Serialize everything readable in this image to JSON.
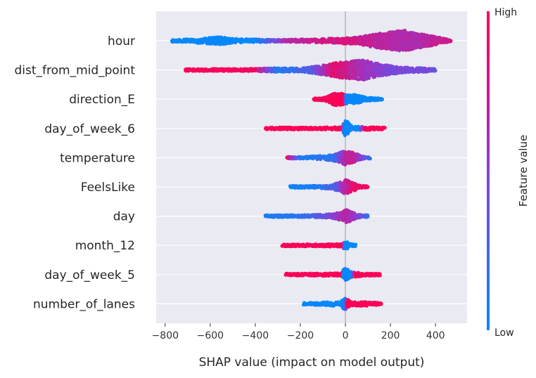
{
  "chart_data": {
    "type": "scatter",
    "subtype": "shap-beeswarm",
    "xlabel": "SHAP value (impact on model output)",
    "xlim": [
      -840,
      540
    ],
    "xticks": [
      -800,
      -600,
      -400,
      -200,
      0,
      200,
      400
    ],
    "colorbar": {
      "label": "Feature value",
      "high_label": "High",
      "low_label": "Low",
      "low_color": "#008bfb",
      "high_color": "#ff0052"
    },
    "background_color": "#eaeaf2",
    "grid": true,
    "features": [
      {
        "name": "hour",
        "min": -770,
        "max": 470,
        "density": [
          [
            -770,
            0.05
          ],
          [
            -700,
            0.12
          ],
          [
            -620,
            0.2
          ],
          [
            -560,
            0.28
          ],
          [
            -480,
            0.14
          ],
          [
            -300,
            0.08
          ],
          [
            -150,
            0.12
          ],
          [
            -50,
            0.18
          ],
          [
            50,
            0.25
          ],
          [
            150,
            0.55
          ],
          [
            220,
            0.7
          ],
          [
            260,
            0.78
          ],
          [
            320,
            0.55
          ],
          [
            400,
            0.3
          ],
          [
            470,
            0.05
          ]
        ],
        "colors": [
          [
            -770,
            0.0
          ],
          [
            -400,
            0.0
          ],
          [
            -250,
            0.7
          ],
          [
            0,
            0.85
          ],
          [
            150,
            0.7
          ],
          [
            300,
            0.65
          ],
          [
            470,
            0.8
          ]
        ]
      },
      {
        "name": "dist_from_mid_point",
        "min": -710,
        "max": 400,
        "density": [
          [
            -710,
            0.04
          ],
          [
            -600,
            0.06
          ],
          [
            -400,
            0.1
          ],
          [
            -300,
            0.15
          ],
          [
            -200,
            0.12
          ],
          [
            -100,
            0.35
          ],
          [
            -20,
            0.6
          ],
          [
            0,
            0.62
          ],
          [
            80,
            0.75
          ],
          [
            150,
            0.45
          ],
          [
            250,
            0.2
          ],
          [
            350,
            0.15
          ],
          [
            400,
            0.05
          ]
        ],
        "colors": [
          [
            -710,
            1.0
          ],
          [
            -400,
            0.95
          ],
          [
            -300,
            0.1
          ],
          [
            -150,
            0.3
          ],
          [
            -50,
            0.9
          ],
          [
            80,
            0.6
          ],
          [
            200,
            0.45
          ],
          [
            400,
            0.4
          ]
        ]
      },
      {
        "name": "direction_E",
        "min": -140,
        "max": 165,
        "density": [
          [
            -140,
            0.04
          ],
          [
            -90,
            0.12
          ],
          [
            -50,
            0.45
          ],
          [
            -30,
            0.5
          ],
          [
            -5,
            0.35
          ],
          [
            15,
            0.3
          ],
          [
            40,
            0.35
          ],
          [
            90,
            0.15
          ],
          [
            165,
            0.04
          ]
        ],
        "colors": [
          [
            -140,
            1.0
          ],
          [
            -5,
            1.0
          ],
          [
            5,
            0.0
          ],
          [
            165,
            0.0
          ]
        ]
      },
      {
        "name": "day_of_week_6",
        "min": -355,
        "max": 175,
        "density": [
          [
            -355,
            0.03
          ],
          [
            -200,
            0.07
          ],
          [
            -20,
            0.1
          ],
          [
            0,
            0.55
          ],
          [
            10,
            0.5
          ],
          [
            30,
            0.15
          ],
          [
            100,
            0.12
          ],
          [
            175,
            0.05
          ]
        ],
        "colors": [
          [
            -355,
            1.0
          ],
          [
            -15,
            1.0
          ],
          [
            -5,
            0.0
          ],
          [
            60,
            0.0
          ],
          [
            90,
            1.0
          ],
          [
            175,
            1.0
          ]
        ]
      },
      {
        "name": "temperature",
        "min": -260,
        "max": 110,
        "density": [
          [
            -260,
            0.04
          ],
          [
            -150,
            0.1
          ],
          [
            -60,
            0.2
          ],
          [
            -20,
            0.4
          ],
          [
            0,
            0.55
          ],
          [
            30,
            0.4
          ],
          [
            70,
            0.15
          ],
          [
            110,
            0.04
          ]
        ],
        "colors": [
          [
            -260,
            0.95
          ],
          [
            -200,
            0.1
          ],
          [
            -50,
            0.15
          ],
          [
            0,
            0.7
          ],
          [
            40,
            0.75
          ],
          [
            110,
            0.2
          ]
        ]
      },
      {
        "name": "FeelsLike",
        "min": -245,
        "max": 100,
        "density": [
          [
            -245,
            0.03
          ],
          [
            -150,
            0.08
          ],
          [
            -60,
            0.15
          ],
          [
            -15,
            0.4
          ],
          [
            0,
            0.55
          ],
          [
            25,
            0.35
          ],
          [
            60,
            0.15
          ],
          [
            100,
            0.04
          ]
        ],
        "colors": [
          [
            -245,
            0.05
          ],
          [
            -120,
            0.1
          ],
          [
            -40,
            0.3
          ],
          [
            0,
            0.7
          ],
          [
            40,
            0.9
          ],
          [
            100,
            0.95
          ]
        ]
      },
      {
        "name": "day",
        "min": -355,
        "max": 100,
        "density": [
          [
            -355,
            0.03
          ],
          [
            -200,
            0.08
          ],
          [
            -60,
            0.15
          ],
          [
            -10,
            0.35
          ],
          [
            5,
            0.5
          ],
          [
            30,
            0.3
          ],
          [
            60,
            0.12
          ],
          [
            100,
            0.04
          ]
        ],
        "colors": [
          [
            -355,
            0.1
          ],
          [
            -200,
            0.15
          ],
          [
            -80,
            0.4
          ],
          [
            0,
            0.7
          ],
          [
            40,
            0.6
          ],
          [
            100,
            0.2
          ]
        ]
      },
      {
        "name": "month_12",
        "min": -280,
        "max": 45,
        "density": [
          [
            -280,
            0.03
          ],
          [
            -150,
            0.08
          ],
          [
            -15,
            0.1
          ],
          [
            -3,
            0.3
          ],
          [
            3,
            0.3
          ],
          [
            20,
            0.12
          ],
          [
            45,
            0.04
          ]
        ],
        "colors": [
          [
            -280,
            1.0
          ],
          [
            -8,
            1.0
          ],
          [
            -4,
            0.0
          ],
          [
            45,
            0.0
          ]
        ]
      },
      {
        "name": "day_of_week_5",
        "min": -265,
        "max": 155,
        "density": [
          [
            -265,
            0.03
          ],
          [
            -120,
            0.1
          ],
          [
            -20,
            0.12
          ],
          [
            -5,
            0.45
          ],
          [
            5,
            0.45
          ],
          [
            25,
            0.2
          ],
          [
            80,
            0.12
          ],
          [
            155,
            0.05
          ]
        ],
        "colors": [
          [
            -265,
            1.0
          ],
          [
            -15,
            1.0
          ],
          [
            -8,
            0.0
          ],
          [
            30,
            0.0
          ],
          [
            45,
            1.0
          ],
          [
            155,
            1.0
          ]
        ]
      },
      {
        "name": "number_of_lanes",
        "min": -185,
        "max": 160,
        "density": [
          [
            -185,
            0.04
          ],
          [
            -120,
            0.1
          ],
          [
            -20,
            0.18
          ],
          [
            -5,
            0.45
          ],
          [
            5,
            0.4
          ],
          [
            20,
            0.18
          ],
          [
            100,
            0.15
          ],
          [
            160,
            0.06
          ]
        ],
        "colors": [
          [
            -185,
            0.0
          ],
          [
            -8,
            0.0
          ],
          [
            0,
            0.05
          ],
          [
            8,
            1.0
          ],
          [
            160,
            1.0
          ]
        ]
      }
    ]
  }
}
